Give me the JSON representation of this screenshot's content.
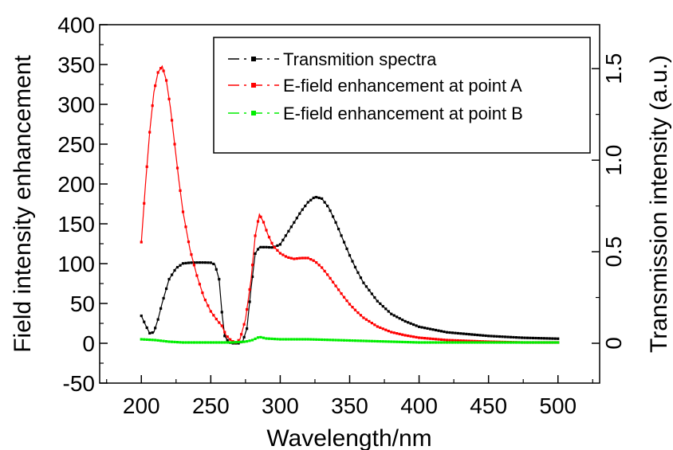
{
  "chart_data": {
    "type": "line",
    "xlabel": "Wavelength/nm",
    "ylabel": "Field intensity enhancement",
    "y2label": "Transmission intensity (a.u.)",
    "xlim": [
      170,
      530
    ],
    "ylim": [
      -50,
      400
    ],
    "y2lim": [
      -0.2175,
      1.74
    ],
    "xticks": [
      200,
      250,
      300,
      350,
      400,
      450,
      500
    ],
    "xtick_labels": [
      "200",
      "250",
      "300",
      "350",
      "400",
      "450",
      "500"
    ],
    "yticks": [
      -50,
      0,
      50,
      100,
      150,
      200,
      250,
      300,
      350,
      400
    ],
    "ytick_labels": [
      "-50",
      "0",
      "50",
      "100",
      "150",
      "200",
      "250",
      "300",
      "350",
      "400"
    ],
    "y2ticks": [
      0,
      0.5,
      1.0,
      1.5
    ],
    "y2tick_labels": [
      "0",
      "0.5",
      "1.0",
      "1.5"
    ],
    "grid": false,
    "legend_position": "top-right",
    "series": [
      {
        "name": "Transmition spectra",
        "axis": "right",
        "color": "#000000",
        "points": [
          [
            200,
            0.15
          ],
          [
            203,
            0.1
          ],
          [
            206,
            0.055
          ],
          [
            209,
            0.06
          ],
          [
            212,
            0.13
          ],
          [
            215,
            0.22
          ],
          [
            220,
            0.35
          ],
          [
            225,
            0.41
          ],
          [
            230,
            0.436
          ],
          [
            235,
            0.44
          ],
          [
            240,
            0.441
          ],
          [
            245,
            0.441
          ],
          [
            250,
            0.44
          ],
          [
            253,
            0.43
          ],
          [
            256,
            0.35
          ],
          [
            258,
            0.17
          ],
          [
            260,
            0.04
          ],
          [
            263,
            0.005
          ],
          [
            266,
            0.0
          ],
          [
            270,
            0.0
          ],
          [
            273,
            0.01
          ],
          [
            276,
            0.08
          ],
          [
            279,
            0.3
          ],
          [
            282,
            0.49
          ],
          [
            285,
            0.525
          ],
          [
            290,
            0.525
          ],
          [
            295,
            0.523
          ],
          [
            300,
            0.54
          ],
          [
            305,
            0.6
          ],
          [
            310,
            0.66
          ],
          [
            315,
            0.72
          ],
          [
            320,
            0.77
          ],
          [
            325,
            0.8
          ],
          [
            330,
            0.79
          ],
          [
            335,
            0.74
          ],
          [
            340,
            0.66
          ],
          [
            345,
            0.57
          ],
          [
            350,
            0.48
          ],
          [
            355,
            0.4
          ],
          [
            360,
            0.33
          ],
          [
            370,
            0.23
          ],
          [
            380,
            0.16
          ],
          [
            390,
            0.12
          ],
          [
            400,
            0.09
          ],
          [
            420,
            0.06
          ],
          [
            450,
            0.04
          ],
          [
            475,
            0.03
          ],
          [
            500,
            0.025
          ]
        ]
      },
      {
        "name": "E-field enhancement at point A",
        "axis": "left",
        "color": "#ff0000",
        "points": [
          [
            200,
            127
          ],
          [
            203,
            200
          ],
          [
            206,
            265
          ],
          [
            209,
            315
          ],
          [
            212,
            340
          ],
          [
            215,
            348
          ],
          [
            218,
            330
          ],
          [
            221,
            295
          ],
          [
            224,
            250
          ],
          [
            227,
            205
          ],
          [
            230,
            165
          ],
          [
            235,
            118
          ],
          [
            240,
            85
          ],
          [
            245,
            58
          ],
          [
            250,
            40
          ],
          [
            255,
            28
          ],
          [
            258,
            22
          ],
          [
            261,
            10
          ],
          [
            265,
            3
          ],
          [
            268,
            1
          ],
          [
            271,
            5
          ],
          [
            275,
            30
          ],
          [
            279,
            80
          ],
          [
            282,
            135
          ],
          [
            285,
            162
          ],
          [
            288,
            152
          ],
          [
            291,
            137
          ],
          [
            295,
            122
          ],
          [
            300,
            113
          ],
          [
            305,
            108
          ],
          [
            310,
            106
          ],
          [
            315,
            107
          ],
          [
            320,
            107
          ],
          [
            325,
            103
          ],
          [
            330,
            95
          ],
          [
            335,
            84
          ],
          [
            340,
            72
          ],
          [
            345,
            60
          ],
          [
            350,
            49
          ],
          [
            355,
            40
          ],
          [
            360,
            32
          ],
          [
            370,
            21
          ],
          [
            380,
            14
          ],
          [
            390,
            10
          ],
          [
            400,
            7
          ],
          [
            420,
            4
          ],
          [
            450,
            2
          ],
          [
            475,
            1
          ],
          [
            500,
            1
          ]
        ]
      },
      {
        "name": "E-field enhancement at point B",
        "axis": "left",
        "color": "#00ee00",
        "points": [
          [
            200,
            5
          ],
          [
            210,
            4
          ],
          [
            220,
            2
          ],
          [
            230,
            1
          ],
          [
            250,
            1
          ],
          [
            265,
            1
          ],
          [
            275,
            2
          ],
          [
            280,
            4
          ],
          [
            285,
            8
          ],
          [
            290,
            6
          ],
          [
            300,
            5
          ],
          [
            320,
            5
          ],
          [
            340,
            4
          ],
          [
            360,
            3
          ],
          [
            380,
            2
          ],
          [
            400,
            1
          ],
          [
            450,
            1
          ],
          [
            500,
            1
          ]
        ]
      }
    ]
  }
}
